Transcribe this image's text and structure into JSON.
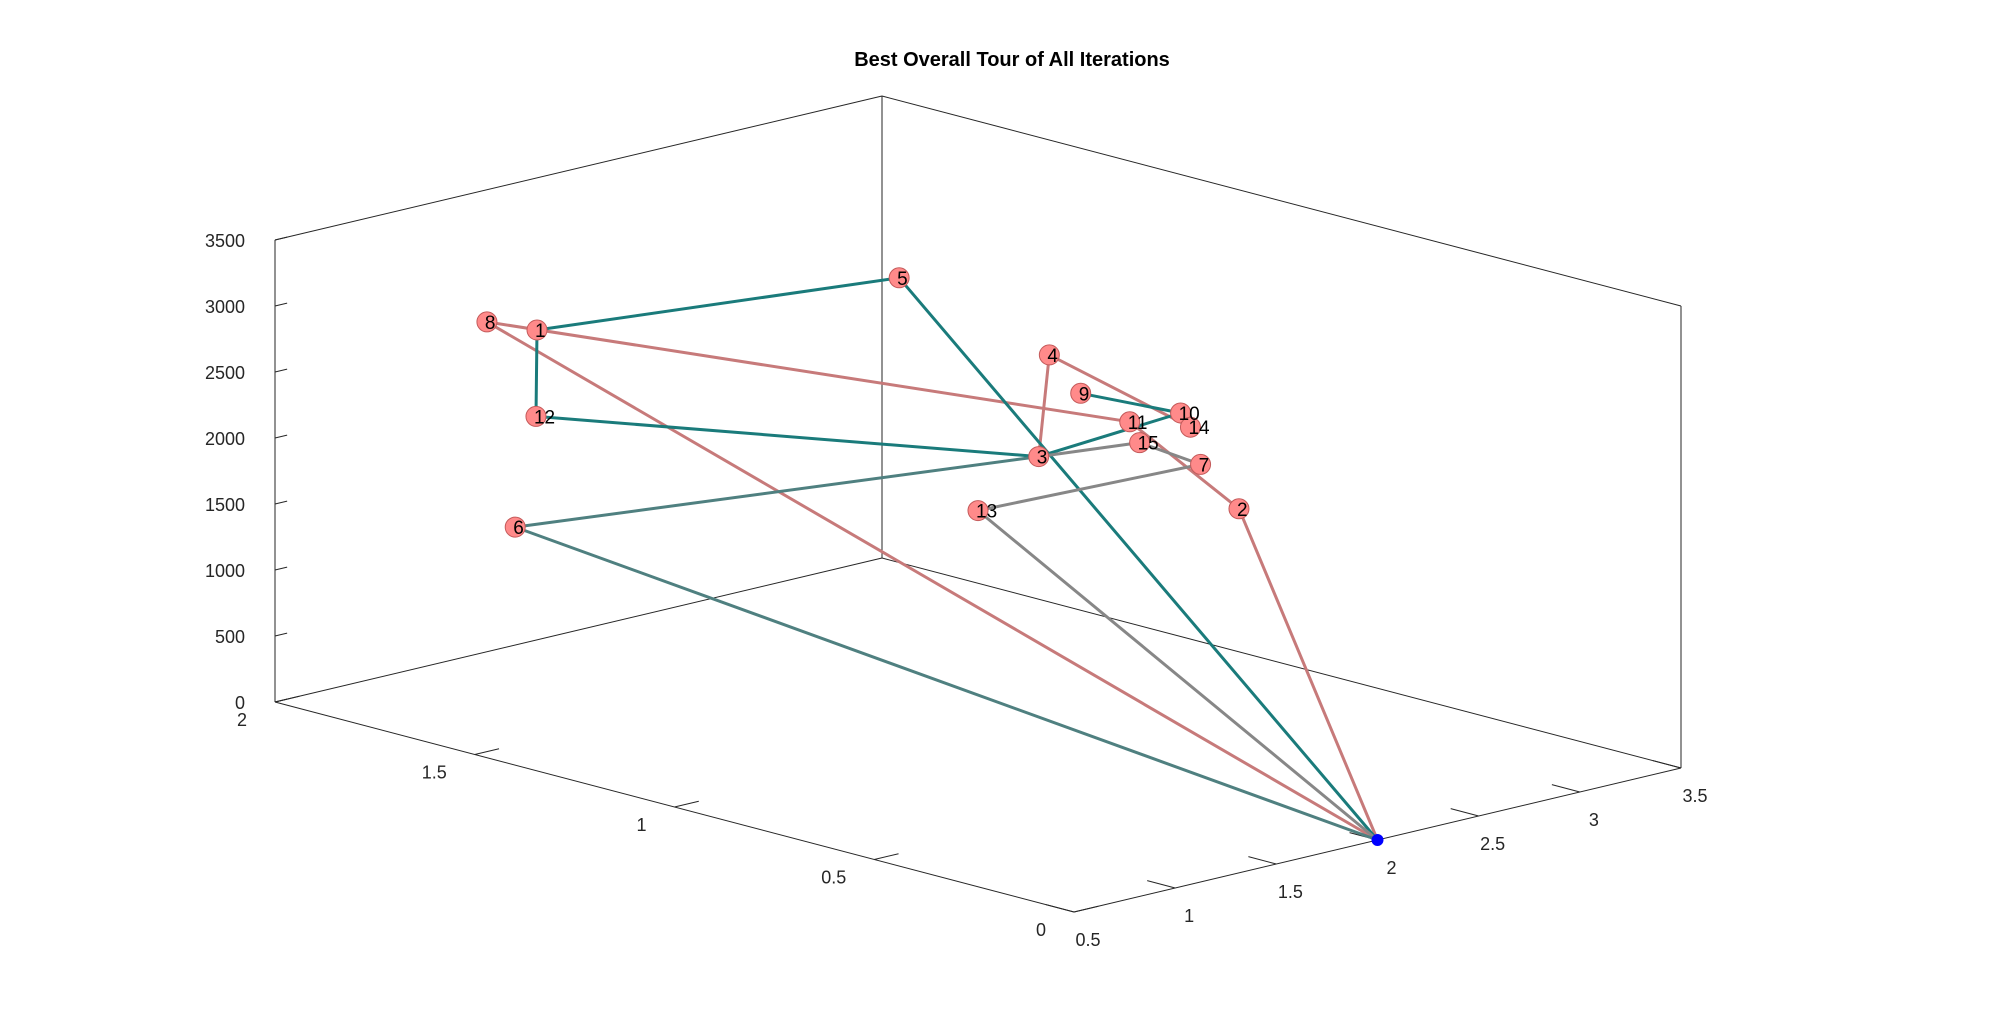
{
  "chart_data": {
    "type": "line",
    "title": "Best Overall Tour of All Iterations",
    "xlabel": "",
    "ylabel": "",
    "zlabel": "",
    "axis_x": {
      "ticks": [
        0.5,
        1,
        1.5,
        2,
        2.5,
        3,
        3.5
      ],
      "labels": [
        "0.5",
        "1",
        "1.5",
        "2",
        "2.5",
        "3",
        "3.5"
      ],
      "range": [
        0.5,
        3.5
      ]
    },
    "axis_y": {
      "ticks": [
        0,
        0.5,
        1,
        1.5,
        2
      ],
      "labels": [
        "0",
        "0.5",
        "1",
        "1.5",
        "2"
      ],
      "range": [
        0,
        2
      ]
    },
    "axis_z": {
      "ticks": [
        0,
        500,
        1000,
        1500,
        2000,
        2500,
        3000,
        3500
      ],
      "labels": [
        "0",
        "500",
        "1000",
        "1500",
        "2000",
        "2500",
        "3000",
        "3500"
      ],
      "range": [
        0,
        3500
      ]
    },
    "grid": false,
    "depot": {
      "x": 2.0,
      "y": 0.0,
      "z": 0,
      "color": "#0000ff"
    },
    "nodes": [
      {
        "label": "1",
        "x": 1.4,
        "y": 1.8,
        "z": 2650
      },
      {
        "label": "2",
        "x": 2.5,
        "y": 0.6,
        "z": 1850
      },
      {
        "label": "3",
        "x": 2.3,
        "y": 1.0,
        "z": 2000
      },
      {
        "label": "4",
        "x": 2.55,
        "y": 1.1,
        "z": 2600
      },
      {
        "label": "5",
        "x": 2.4,
        "y": 1.4,
        "z": 3000
      },
      {
        "label": "6",
        "x": 0.7,
        "y": 1.5,
        "z": 1650
      },
      {
        "label": "7",
        "x": 3.1,
        "y": 1.0,
        "z": 1650
      },
      {
        "label": "8",
        "x": 1.35,
        "y": 1.9,
        "z": 2650
      },
      {
        "label": "9",
        "x": 3.1,
        "y": 1.3,
        "z": 1950
      },
      {
        "label": "10",
        "x": 3.1,
        "y": 1.05,
        "z": 2000
      },
      {
        "label": "11",
        "x": 2.75,
        "y": 1.0,
        "z": 2100
      },
      {
        "label": "12",
        "x": 1.0,
        "y": 1.6,
        "z": 2300
      },
      {
        "label": "13",
        "x": 2.0,
        "y": 1.0,
        "z": 1700
      },
      {
        "label": "14",
        "x": 3.05,
        "y": 1.0,
        "z": 1950
      },
      {
        "label": "15",
        "x": 2.7,
        "y": 0.95,
        "z": 2000
      }
    ],
    "node_color": "#ff8a8a",
    "series": [
      {
        "color": "#c77a7a",
        "route": [
          "depot",
          "8",
          "11",
          "2",
          "depot"
        ]
      },
      {
        "color": "#c77a7a",
        "route": [
          "3",
          "4",
          "14"
        ]
      },
      {
        "color": "#1a7b7b",
        "route": [
          "depot",
          "5",
          "1",
          "12",
          "3",
          "10",
          "9"
        ]
      },
      {
        "color": "#878787",
        "route": [
          "depot",
          "13",
          "7",
          "15",
          "3"
        ]
      },
      {
        "color": "#4f8080",
        "route": [
          "depot",
          "6",
          "3"
        ]
      }
    ]
  }
}
